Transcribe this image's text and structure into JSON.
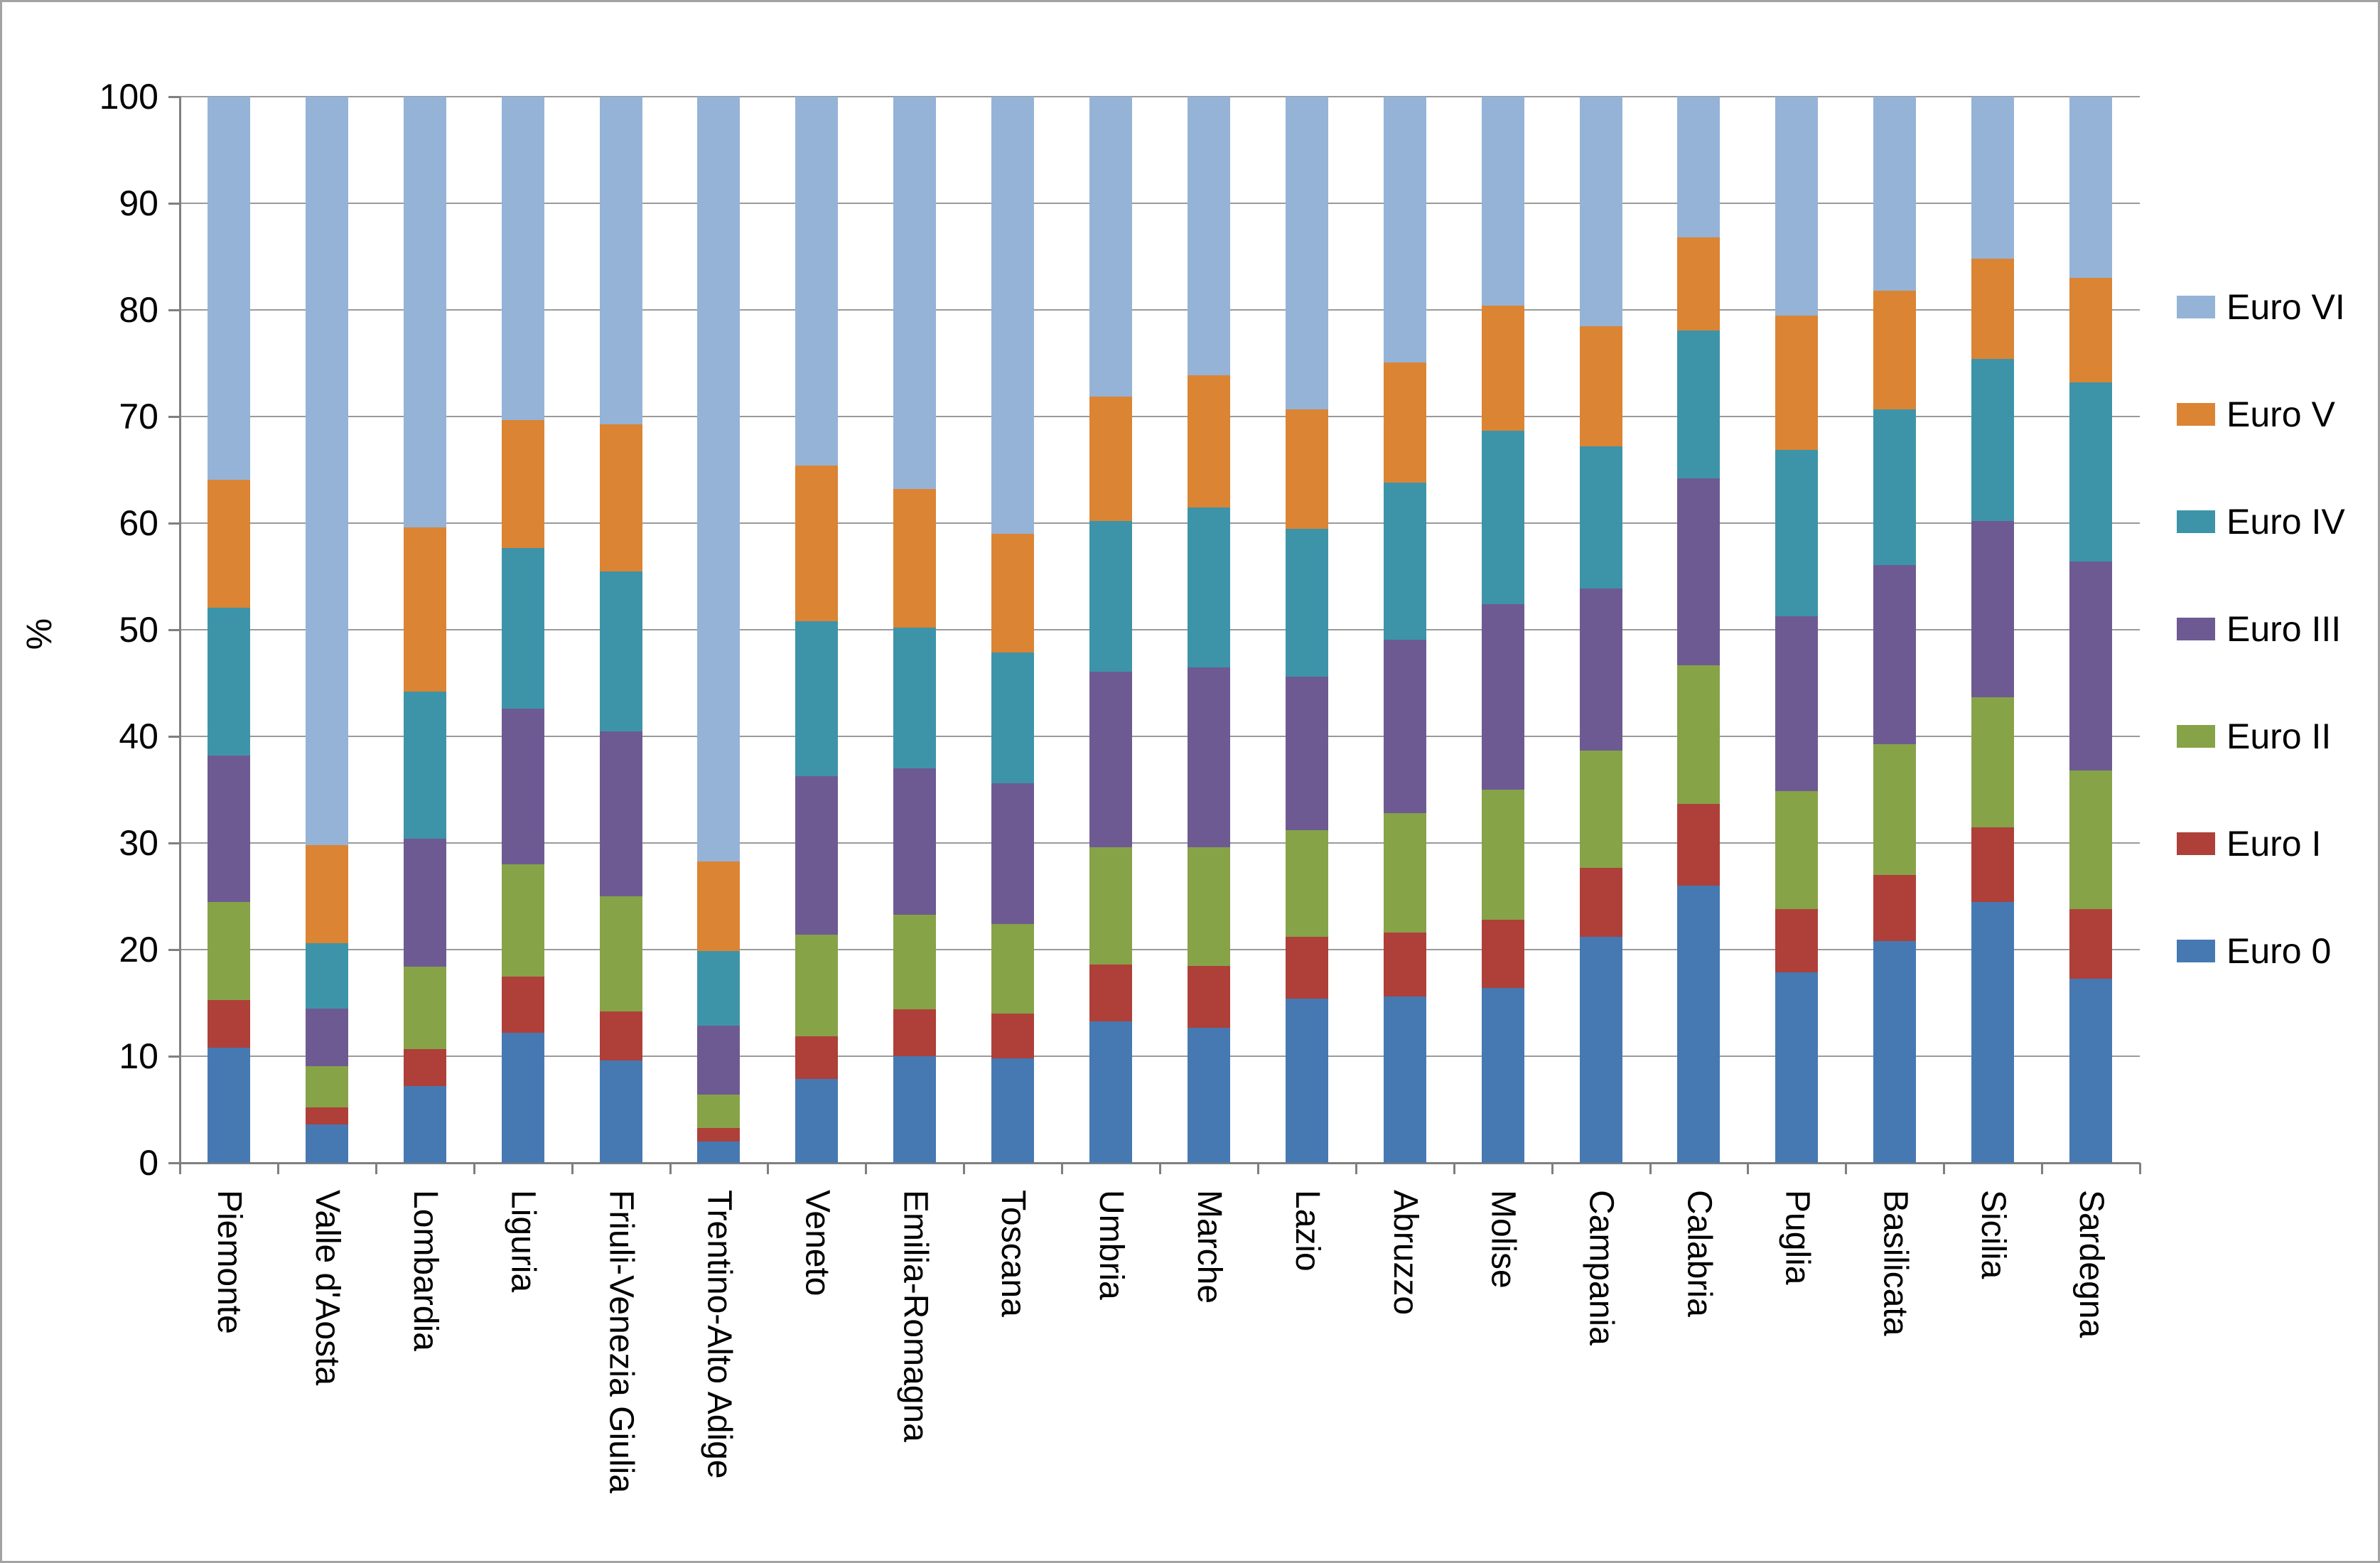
{
  "frame": {
    "background": "#ffffff",
    "border_color": "#a3a3a3"
  },
  "chart_data": {
    "type": "bar",
    "stacked": true,
    "title": "",
    "xlabel": "",
    "ylabel": "%",
    "ylim": [
      0,
      100
    ],
    "grid": true,
    "legend_position": "right",
    "yticks": [
      "0",
      "10",
      "20",
      "30",
      "40",
      "50",
      "60",
      "70",
      "80",
      "90",
      "100"
    ],
    "categories": [
      "Piemonte",
      "Valle d'Aosta",
      "Lombardia",
      "Liguria",
      "Friuli-Venezia Giulia",
      "Trentino-Alto Adige",
      "Veneto",
      "Emilia-Romagna",
      "Toscana",
      "Umbria",
      "Marche",
      "Lazio",
      "Abruzzo",
      "Molise",
      "Campania",
      "Calabria",
      "Puglia",
      "Basilicata",
      "Sicilia",
      "Sardegna"
    ],
    "series": [
      {
        "name": "Euro 0",
        "color": "#4679B2",
        "values": [
          10.8,
          3.6,
          7.2,
          12.2,
          9.6,
          2.0,
          7.9,
          10.0,
          9.8,
          13.3,
          12.7,
          15.4,
          15.6,
          16.4,
          21.2,
          26.0,
          17.9,
          20.8,
          24.5,
          17.3
        ]
      },
      {
        "name": "Euro I",
        "color": "#AE4039",
        "values": [
          4.5,
          1.6,
          3.5,
          5.3,
          4.6,
          1.3,
          4.0,
          4.4,
          4.2,
          5.3,
          5.8,
          5.8,
          6.0,
          6.4,
          6.5,
          7.7,
          5.9,
          6.2,
          7.0,
          6.5
        ]
      },
      {
        "name": "Euro II",
        "color": "#86A348",
        "values": [
          9.2,
          3.9,
          7.7,
          10.5,
          10.8,
          3.1,
          9.5,
          8.9,
          8.4,
          11.0,
          11.1,
          10.0,
          11.2,
          12.2,
          11.0,
          13.0,
          11.1,
          12.3,
          12.2,
          13.0
        ]
      },
      {
        "name": "Euro III",
        "color": "#6E5A92",
        "values": [
          13.7,
          5.4,
          12.0,
          14.6,
          15.5,
          6.5,
          14.9,
          13.7,
          13.2,
          16.5,
          16.9,
          14.4,
          16.3,
          17.4,
          15.2,
          17.5,
          16.4,
          16.8,
          16.5,
          19.6
        ]
      },
      {
        "name": "Euro IV",
        "color": "#3D94A9",
        "values": [
          13.9,
          6.1,
          13.8,
          15.1,
          15.0,
          7.0,
          14.5,
          13.2,
          12.3,
          14.1,
          15.0,
          13.9,
          14.7,
          16.3,
          13.3,
          13.9,
          15.6,
          14.6,
          15.2,
          16.8
        ]
      },
      {
        "name": "Euro V",
        "color": "#DB8433",
        "values": [
          12.0,
          9.2,
          15.4,
          12.0,
          13.8,
          8.4,
          14.6,
          13.0,
          11.1,
          11.7,
          12.4,
          11.2,
          11.3,
          11.7,
          11.3,
          8.7,
          12.6,
          11.1,
          9.4,
          9.8
        ]
      },
      {
        "name": "Euro VI",
        "color": "#95B3D7",
        "values": [
          35.9,
          70.2,
          40.4,
          30.3,
          30.7,
          71.7,
          34.6,
          36.8,
          41.0,
          28.1,
          26.1,
          29.3,
          24.9,
          19.6,
          21.5,
          13.2,
          20.5,
          18.2,
          15.2,
          17.0
        ]
      }
    ],
    "legend_order": [
      "Euro VI",
      "Euro V",
      "Euro IV",
      "Euro III",
      "Euro II",
      "Euro I",
      "Euro 0"
    ]
  }
}
